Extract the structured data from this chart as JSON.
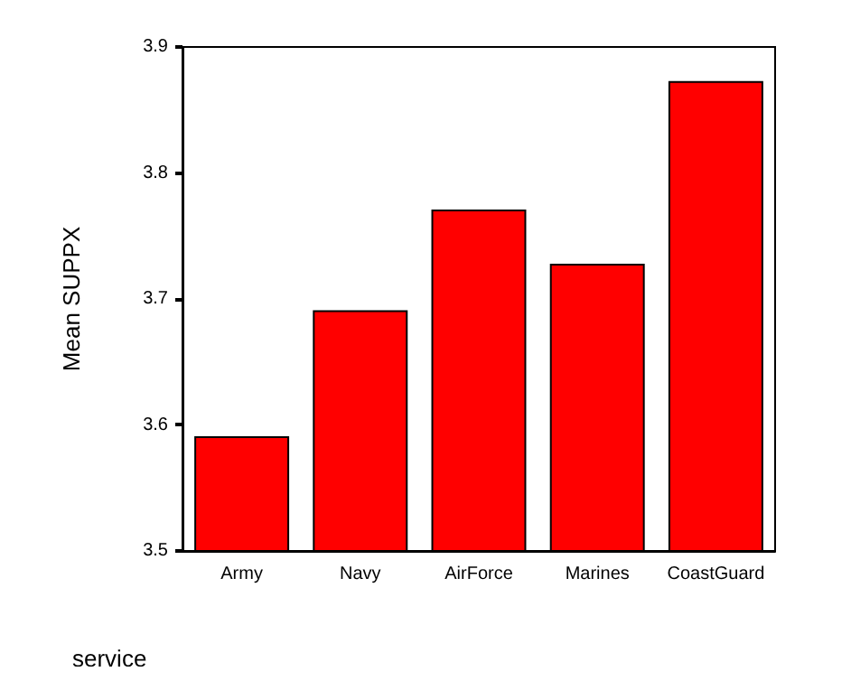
{
  "chart_data": {
    "type": "bar",
    "xlabel": "service",
    "ylabel": "Mean SUPPX",
    "categories": [
      "Army",
      "Navy",
      "AirForce",
      "Marines",
      "CoastGuard"
    ],
    "values": [
      3.591,
      3.691,
      3.771,
      3.728,
      3.873
    ],
    "color": "#ff0000",
    "ylim": [
      3.5,
      3.9
    ],
    "yticks": [
      3.5,
      3.6,
      3.7,
      3.8,
      3.9
    ],
    "grid": false
  }
}
